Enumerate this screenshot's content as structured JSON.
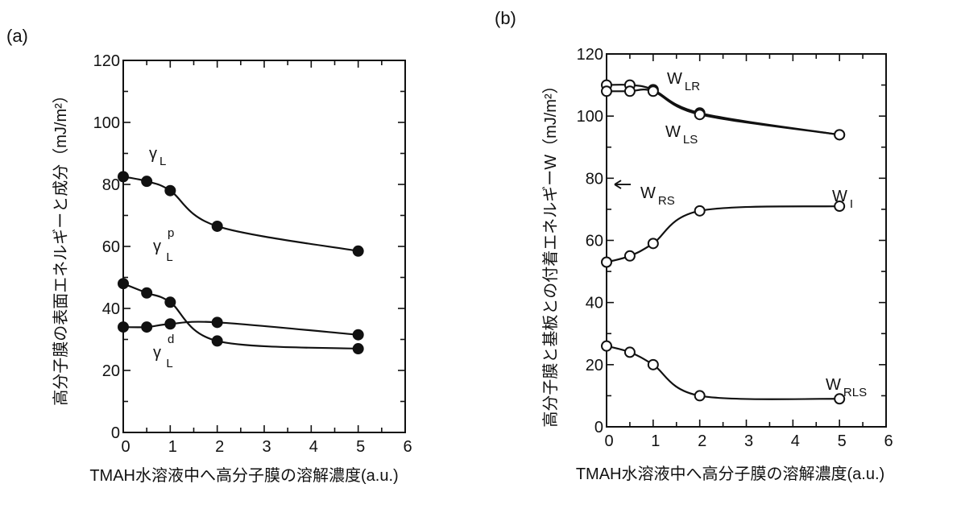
{
  "chart_data": [
    {
      "type": "line",
      "panel_label": "(a)",
      "xlabel": "TMAH水溶液中へ高分子膜の溶解濃度(a.u.)",
      "ylabel": "高分子膜の表面エネルギーと成分（mJ/m²）",
      "xlim": [
        0,
        6
      ],
      "ylim": [
        0,
        120
      ],
      "xticks": [
        "0",
        "1",
        "2",
        "3",
        "4",
        "5",
        "6"
      ],
      "yticks": [
        "0",
        "20",
        "40",
        "60",
        "80",
        "100",
        "120"
      ],
      "grid": false,
      "marker": "filled-circle",
      "x": [
        0,
        0.5,
        1,
        2,
        5
      ],
      "series": [
        {
          "name": "γL",
          "label": {
            "base": "γ",
            "sub": "L",
            "sup": ""
          },
          "values": [
            82.5,
            81,
            78,
            66.5,
            58.5
          ]
        },
        {
          "name": "γLp",
          "label": {
            "base": "γ",
            "sub": "L",
            "sup": "p"
          },
          "values": [
            48,
            45,
            42,
            29.5,
            27
          ]
        },
        {
          "name": "γLd",
          "label": {
            "base": "γ",
            "sub": "L",
            "sup": "d"
          },
          "values": [
            34,
            34,
            35,
            35.5,
            31.5
          ]
        }
      ]
    },
    {
      "type": "line",
      "panel_label": "(b)",
      "xlabel": "TMAH水溶液中へ高分子膜の溶解濃度(a.u.)",
      "ylabel": "高分子膜と基板との付着エネルギーW（mJ/m²）",
      "xlim": [
        0,
        6
      ],
      "ylim": [
        0,
        120
      ],
      "xticks": [
        "0",
        "1",
        "2",
        "3",
        "4",
        "5",
        "6"
      ],
      "yticks": [
        "0",
        "20",
        "40",
        "60",
        "80",
        "100",
        "120"
      ],
      "grid": false,
      "marker": "open-circle",
      "x": [
        0,
        0.5,
        1,
        2,
        5
      ],
      "series": [
        {
          "name": "WLR",
          "label": {
            "base": "W",
            "sub": "LR",
            "sup": ""
          },
          "values": [
            110,
            110,
            108.5,
            101,
            94
          ]
        },
        {
          "name": "WLS",
          "label": {
            "base": "W",
            "sub": "LS",
            "sup": ""
          },
          "values": [
            108,
            108,
            108,
            100.5,
            94
          ]
        },
        {
          "name": "WI",
          "label": {
            "base": "W",
            "sub": "I",
            "sup": ""
          },
          "values": [
            53,
            55,
            59,
            69.5,
            71
          ]
        },
        {
          "name": "WRLS",
          "label": {
            "base": "W",
            "sub": "RLS",
            "sup": ""
          },
          "values": [
            26,
            24,
            20,
            10,
            9
          ]
        }
      ],
      "annotations": [
        {
          "label": {
            "base": "W",
            "sub": "RS",
            "sup": ""
          },
          "arrow": "left",
          "y": 78
        }
      ]
    }
  ]
}
